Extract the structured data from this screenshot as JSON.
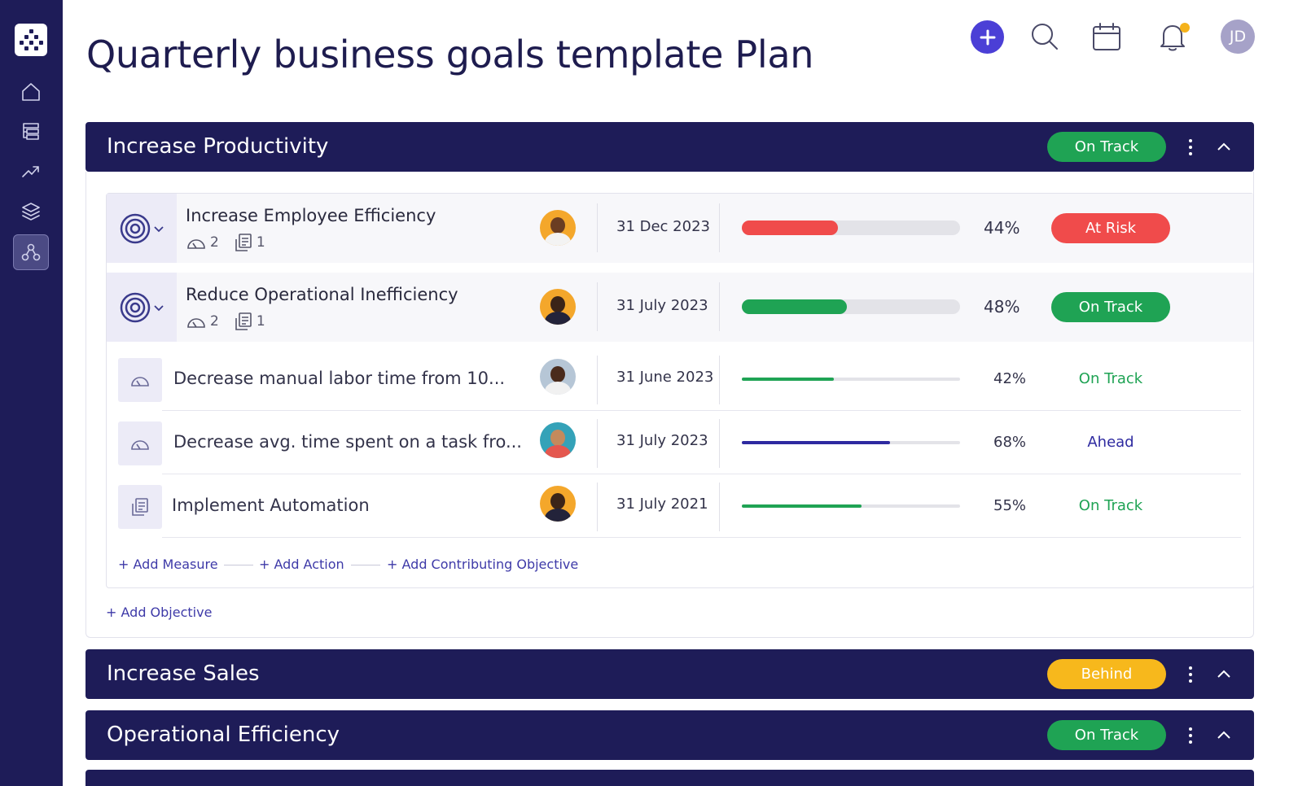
{
  "page": {
    "title": "Quarterly business goals template Plan"
  },
  "sidebar": {
    "logo_icon": "app-logo-icon",
    "items": [
      {
        "icon": "home-icon"
      },
      {
        "icon": "list-tree-icon"
      },
      {
        "icon": "trend-icon"
      },
      {
        "icon": "layers-icon"
      },
      {
        "icon": "hierarchy-icon",
        "active": true
      }
    ]
  },
  "topbar": {
    "add_icon": "plus-icon",
    "search_icon": "search-icon",
    "calendar_icon": "calendar-icon",
    "notification_icon": "bell-icon",
    "avatar_initials": "JD"
  },
  "colors": {
    "navy": "#1e1c58",
    "green": "#1fa354",
    "red": "#f04b4b",
    "yellow": "#f7b81c",
    "blue": "#2e2aa0",
    "accent": "#4b3fd6"
  },
  "goals": [
    {
      "title": "Increase Productivity",
      "status": "On Track",
      "objectives": [
        {
          "title": "Increase Employee Efficiency",
          "measures": "2",
          "actions": "1",
          "date": "31 Dec 2023",
          "progress": 44,
          "progress_label": "44%",
          "status": "At Risk"
        },
        {
          "title": "Reduce Operational Inefficiency",
          "measures": "2",
          "actions": "1",
          "date": "31 July 2023",
          "progress": 48,
          "progress_label": "48%",
          "status": "On Track"
        }
      ],
      "key_results": [
        {
          "icon": "gauge-icon",
          "title": "Decrease manual labor time from 10...",
          "date": "31 June 2023",
          "progress": 42,
          "progress_label": "42%",
          "status": "On Track"
        },
        {
          "icon": "gauge-icon",
          "title": "Decrease avg. time spent on a task fro...",
          "date": "31 July 2023",
          "progress": 68,
          "progress_label": "68%",
          "status": "Ahead"
        },
        {
          "icon": "task-doc-icon",
          "title": "Implement Automation",
          "date": "31 July 2021",
          "progress": 55,
          "progress_label": "55%",
          "status": "On Track"
        }
      ],
      "links": {
        "add_measure": "+ Add Measure",
        "add_action": "+ Add Action",
        "add_contributing": "+ Add Contributing Objective",
        "add_objective": "+ Add Objective"
      }
    },
    {
      "title": "Increase Sales",
      "status": "Behind"
    },
    {
      "title": "Operational Efficiency",
      "status": "On Track"
    }
  ]
}
